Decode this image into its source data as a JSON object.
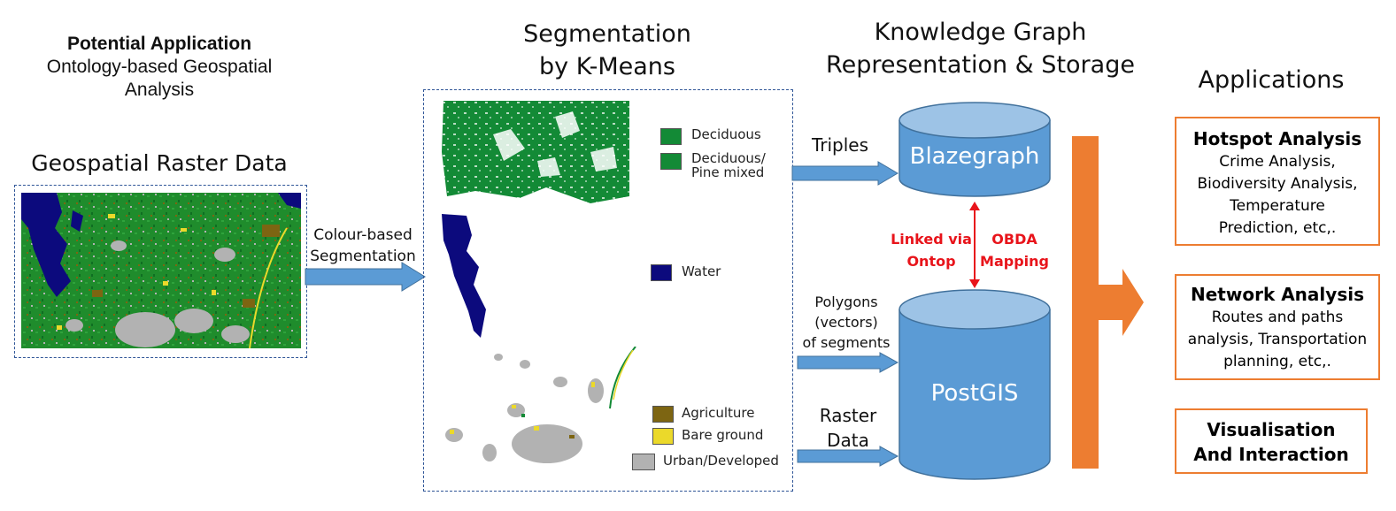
{
  "potential": {
    "title": "Potential Application",
    "line1": "Ontology-based Geospatial",
    "line2": "Analysis"
  },
  "raster": {
    "title": "Geospatial Raster Data"
  },
  "segmentation_arrow": {
    "line1": "Colour-based",
    "line2": "Segmentation"
  },
  "kmeans": {
    "line1": "Segmentation",
    "line2": "by K-Means"
  },
  "legend": {
    "deciduous": "Deciduous",
    "mixed_line1": "Deciduous/",
    "mixed_line2": "Pine mixed",
    "water": "Water",
    "agriculture": "Agriculture",
    "bare_ground": "Bare ground",
    "urban": "Urban/Developed"
  },
  "kg": {
    "line1": "Knowledge Graph",
    "line2": "Representation & Storage"
  },
  "arrows": {
    "triples": "Triples",
    "polygons_line1": "Polygons",
    "polygons_line2": "(vectors)",
    "polygons_line3": "of segments",
    "raster_line1": "Raster",
    "raster_line2": "Data"
  },
  "blazegraph": "Blazegraph",
  "postgis": "PostGIS",
  "link": {
    "left_line1": "Linked via",
    "left_line2": "Ontop",
    "right_line1": "OBDA",
    "right_line2": "Mapping"
  },
  "applications": {
    "title": "Applications",
    "hotspot": {
      "title": "Hotspot Analysis",
      "l1": "Crime Analysis,",
      "l2": "Biodiversity Analysis,",
      "l3": "Temperature",
      "l4": "Prediction, etc,."
    },
    "network": {
      "title": "Network Analysis",
      "l1": "Routes and paths",
      "l2": "analysis, Transportation",
      "l3": "planning, etc,."
    },
    "vis": {
      "l1": "Visualisation",
      "l2": "And Interaction"
    }
  },
  "colors": {
    "arrow_blue": "#5b9bd5",
    "cylinder_body": "#5b9bd5",
    "cylinder_top": "#9dc3e6",
    "orange": "#ed7d31",
    "deciduous": "#138a36",
    "water": "#0c0a7d",
    "agriculture": "#7d6512",
    "bare_ground": "#ebd92a",
    "urban": "#b2b2b2",
    "link_red": "#e8141b"
  }
}
